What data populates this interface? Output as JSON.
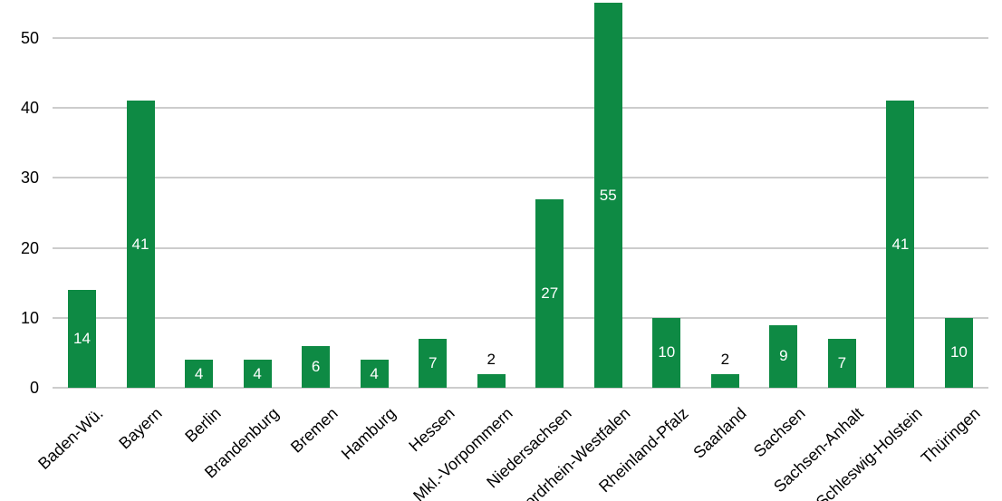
{
  "chart_data": {
    "type": "bar",
    "title": "",
    "xlabel": "",
    "ylabel": "",
    "categories": [
      "Baden-Wü.",
      "Bayern",
      "Berlin",
      "Brandenburg",
      "Bremen",
      "Hamburg",
      "Hessen",
      "Mkl.-Vorpommern",
      "Niedersachsen",
      "Nordrhein-Westfalen",
      "Rheinland-Pfalz",
      "Saarland",
      "Sachsen",
      "Sachsen-Anhalt",
      "Schleswig-Holstein",
      "Thüringen"
    ],
    "values": [
      14,
      41,
      4,
      4,
      6,
      4,
      7,
      2,
      27,
      55,
      10,
      2,
      9,
      7,
      41,
      10
    ],
    "y_ticks": [
      0,
      10,
      20,
      30,
      40,
      50
    ],
    "y_tick_labels": [
      "0",
      "10",
      "20",
      "30",
      "40",
      "50"
    ],
    "ylim": [
      0,
      55.7
    ],
    "grid": true,
    "legend_position": "none",
    "bar_color": "#0e8a44",
    "inside_label_color": "#ffffff",
    "outside_label_color": "#000000",
    "axis_text_color": "#000000",
    "gridline_color": "#cccccc",
    "background_color": "#ffffff"
  }
}
